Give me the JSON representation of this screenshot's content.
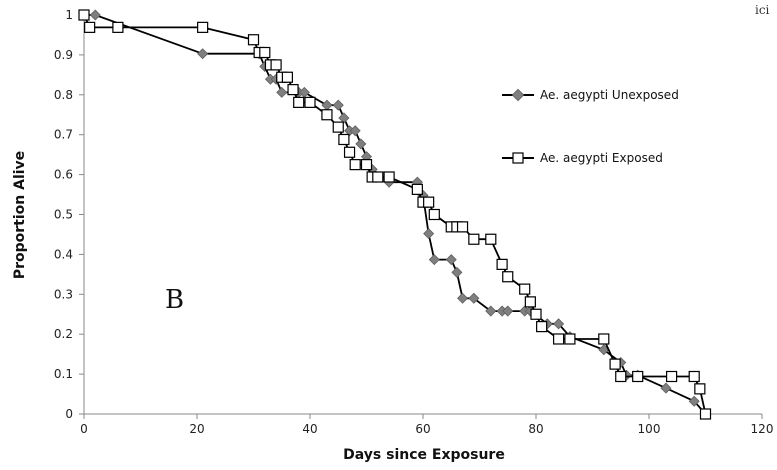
{
  "chart_data": {
    "type": "line",
    "title": "",
    "xlabel": "Days since Exposure",
    "ylabel": "Proportion Alive",
    "xlim": [
      0,
      120
    ],
    "ylim": [
      0,
      1
    ],
    "x_ticks": [
      "0",
      "20",
      "40",
      "60",
      "80",
      "100",
      "120"
    ],
    "y_ticks": [
      "0",
      "0.1",
      "0.2",
      "0.3",
      "0.4",
      "0.5",
      "0.6",
      "0.7",
      "0.8",
      "0.9",
      "1"
    ],
    "grid": false,
    "legend_position": "right",
    "panel_label": "B",
    "corner_fragment": "ici",
    "series": [
      {
        "name": "Ae. aegypti Unexposed",
        "marker": "diamond",
        "color": "#7f7f7f",
        "points": [
          [
            0,
            1
          ],
          [
            2,
            1
          ],
          [
            21,
            0.903
          ],
          [
            31,
            0.903
          ],
          [
            32,
            0.871
          ],
          [
            33,
            0.839
          ],
          [
            34,
            0.839
          ],
          [
            35,
            0.806
          ],
          [
            38,
            0.806
          ],
          [
            39,
            0.806
          ],
          [
            43,
            0.774
          ],
          [
            45,
            0.774
          ],
          [
            46,
            0.742
          ],
          [
            47,
            0.71
          ],
          [
            48,
            0.71
          ],
          [
            49,
            0.677
          ],
          [
            50,
            0.645
          ],
          [
            51,
            0.613
          ],
          [
            54,
            0.581
          ],
          [
            59,
            0.581
          ],
          [
            60,
            0.548
          ],
          [
            61,
            0.452
          ],
          [
            62,
            0.387
          ],
          [
            65,
            0.387
          ],
          [
            66,
            0.355
          ],
          [
            67,
            0.29
          ],
          [
            69,
            0.29
          ],
          [
            72,
            0.258
          ],
          [
            74,
            0.258
          ],
          [
            75,
            0.258
          ],
          [
            78,
            0.258
          ],
          [
            79,
            0.258
          ],
          [
            82,
            0.226
          ],
          [
            84,
            0.226
          ],
          [
            86,
            0.194
          ],
          [
            92,
            0.161
          ],
          [
            95,
            0.129
          ],
          [
            96,
            0.097
          ],
          [
            98,
            0.097
          ],
          [
            103,
            0.065
          ],
          [
            108,
            0.032
          ],
          [
            110,
            0
          ]
        ]
      },
      {
        "name": "Ae. aegypti Exposed",
        "marker": "square",
        "color": "#000000",
        "points": [
          [
            0,
            1
          ],
          [
            1,
            0.969
          ],
          [
            6,
            0.969
          ],
          [
            21,
            0.969
          ],
          [
            30,
            0.938
          ],
          [
            31,
            0.906
          ],
          [
            32,
            0.906
          ],
          [
            33,
            0.875
          ],
          [
            34,
            0.875
          ],
          [
            35,
            0.844
          ],
          [
            36,
            0.844
          ],
          [
            37,
            0.813
          ],
          [
            38,
            0.781
          ],
          [
            40,
            0.781
          ],
          [
            43,
            0.75
          ],
          [
            45,
            0.719
          ],
          [
            46,
            0.688
          ],
          [
            47,
            0.656
          ],
          [
            48,
            0.625
          ],
          [
            50,
            0.625
          ],
          [
            51,
            0.594
          ],
          [
            52,
            0.594
          ],
          [
            54,
            0.594
          ],
          [
            59,
            0.563
          ],
          [
            60,
            0.531
          ],
          [
            61,
            0.531
          ],
          [
            62,
            0.5
          ],
          [
            65,
            0.469
          ],
          [
            66,
            0.469
          ],
          [
            67,
            0.469
          ],
          [
            69,
            0.438
          ],
          [
            72,
            0.438
          ],
          [
            74,
            0.375
          ],
          [
            75,
            0.344
          ],
          [
            78,
            0.313
          ],
          [
            79,
            0.281
          ],
          [
            80,
            0.25
          ],
          [
            81,
            0.219
          ],
          [
            84,
            0.188
          ],
          [
            86,
            0.188
          ],
          [
            92,
            0.188
          ],
          [
            94,
            0.125
          ],
          [
            95,
            0.094
          ],
          [
            98,
            0.094
          ],
          [
            104,
            0.094
          ],
          [
            108,
            0.094
          ],
          [
            109,
            0.063
          ],
          [
            110,
            0
          ]
        ]
      }
    ]
  }
}
